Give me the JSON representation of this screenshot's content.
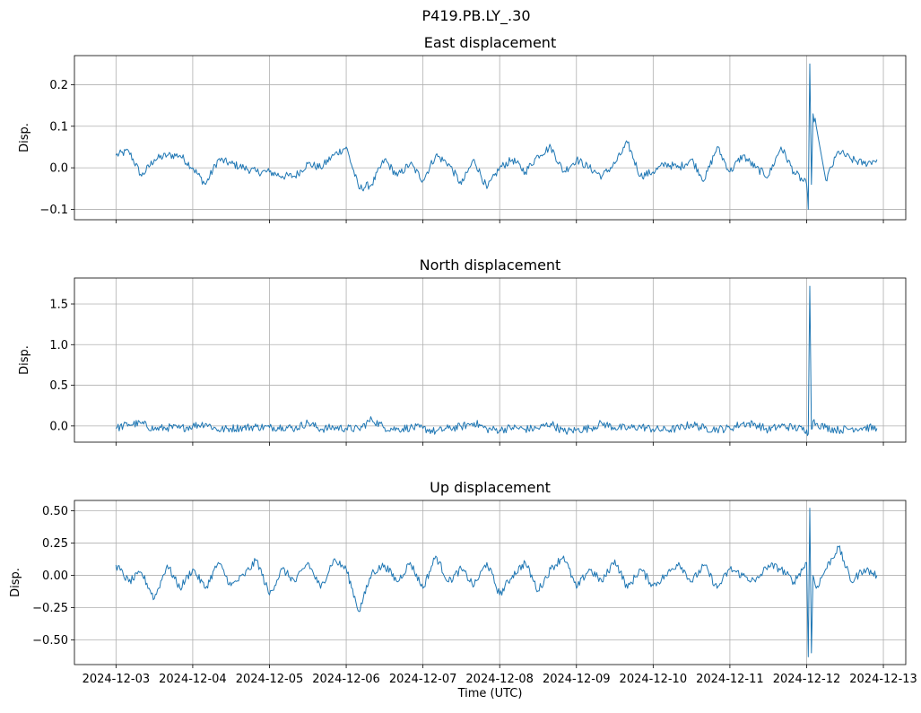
{
  "figure_title": "P419.PB.LY_.30",
  "colors": {
    "series": "#1f77b4",
    "grid": "#b0b0b0"
  },
  "chart_data": [
    {
      "type": "line",
      "title": "East displacement",
      "xlabel": "",
      "ylabel": "Disp.",
      "grid": true,
      "xlim": [
        "2024-12-02T11:00",
        "2024-12-13T07:00"
      ],
      "ylim": [
        -0.125,
        0.27
      ],
      "yticks": [
        -0.1,
        0.0,
        0.1,
        0.2
      ],
      "ytick_labels": [
        "−0.1",
        "0.0",
        "0.1",
        "0.2"
      ],
      "xticks": [
        "2024-12-03",
        "2024-12-04",
        "2024-12-05",
        "2024-12-06",
        "2024-12-07",
        "2024-12-08",
        "2024-12-09",
        "2024-12-10",
        "2024-12-11",
        "2024-12-12",
        "2024-12-13"
      ],
      "xtick_labels_visible": false,
      "series": [
        {
          "x": [
            "2024-12-03T00:00",
            "2024-12-03T04:00",
            "2024-12-03T08:00",
            "2024-12-03T12:00",
            "2024-12-03T16:00",
            "2024-12-03T20:00",
            "2024-12-04T00:00",
            "2024-12-04T04:00",
            "2024-12-04T08:00",
            "2024-12-04T12:00",
            "2024-12-04T16:00",
            "2024-12-04T20:00",
            "2024-12-05T00:00",
            "2024-12-05T04:00",
            "2024-12-05T08:00",
            "2024-12-05T12:00",
            "2024-12-05T16:00",
            "2024-12-05T20:00",
            "2024-12-06T00:00",
            "2024-12-06T04:00",
            "2024-12-06T08:00",
            "2024-12-06T12:00",
            "2024-12-06T16:00",
            "2024-12-06T20:00",
            "2024-12-07T00:00",
            "2024-12-07T04:00",
            "2024-12-07T08:00",
            "2024-12-07T12:00",
            "2024-12-07T16:00",
            "2024-12-07T20:00",
            "2024-12-08T00:00",
            "2024-12-08T04:00",
            "2024-12-08T08:00",
            "2024-12-08T12:00",
            "2024-12-08T16:00",
            "2024-12-08T20:00",
            "2024-12-09T00:00",
            "2024-12-09T04:00",
            "2024-12-09T08:00",
            "2024-12-09T12:00",
            "2024-12-09T16:00",
            "2024-12-09T20:00",
            "2024-12-10T00:00",
            "2024-12-10T04:00",
            "2024-12-10T08:00",
            "2024-12-10T12:00",
            "2024-12-10T16:00",
            "2024-12-10T20:00",
            "2024-12-11T00:00",
            "2024-12-11T04:00",
            "2024-12-11T08:00",
            "2024-12-11T12:00",
            "2024-12-11T16:00",
            "2024-12-11T20:00",
            "2024-12-12T00:00",
            "2024-12-12T00:30",
            "2024-12-12T01:00",
            "2024-12-12T01:30",
            "2024-12-12T02:00",
            "2024-12-12T03:00",
            "2024-12-12T06:00",
            "2024-12-12T10:00",
            "2024-12-12T14:00",
            "2024-12-12T18:00",
            "2024-12-12T22:00"
          ],
          "y": [
            0.03,
            0.04,
            -0.02,
            0.02,
            0.03,
            0.03,
            0.0,
            -0.04,
            0.02,
            0.01,
            0.0,
            -0.01,
            -0.01,
            -0.02,
            -0.02,
            0.01,
            0.0,
            0.03,
            0.05,
            -0.05,
            -0.04,
            0.02,
            -0.02,
            0.01,
            -0.03,
            0.03,
            0.01,
            -0.04,
            0.02,
            -0.05,
            0.0,
            0.02,
            -0.01,
            0.03,
            0.05,
            -0.01,
            0.02,
            0.0,
            -0.02,
            0.01,
            0.06,
            -0.02,
            -0.01,
            0.01,
            0.0,
            0.02,
            -0.03,
            0.05,
            -0.01,
            0.03,
            0.0,
            -0.02,
            0.05,
            -0.01,
            -0.04,
            -0.1,
            0.25,
            -0.04,
            0.13,
            0.1,
            -0.03,
            0.04,
            0.02,
            0.01,
            0.02
          ]
        }
      ]
    },
    {
      "type": "line",
      "title": "North displacement",
      "xlabel": "",
      "ylabel": "Disp.",
      "grid": true,
      "xlim": [
        "2024-12-02T11:00",
        "2024-12-13T07:00"
      ],
      "ylim": [
        -0.2,
        1.82
      ],
      "yticks": [
        0.0,
        0.5,
        1.0,
        1.5
      ],
      "ytick_labels": [
        "0.0",
        "0.5",
        "1.0",
        "1.5"
      ],
      "xticks": [
        "2024-12-03",
        "2024-12-04",
        "2024-12-05",
        "2024-12-06",
        "2024-12-07",
        "2024-12-08",
        "2024-12-09",
        "2024-12-10",
        "2024-12-11",
        "2024-12-12",
        "2024-12-13"
      ],
      "xtick_labels_visible": false,
      "series": [
        {
          "x": [
            "2024-12-03T00:00",
            "2024-12-03T04:00",
            "2024-12-03T08:00",
            "2024-12-03T12:00",
            "2024-12-03T16:00",
            "2024-12-03T20:00",
            "2024-12-04T00:00",
            "2024-12-04T04:00",
            "2024-12-04T08:00",
            "2024-12-04T12:00",
            "2024-12-04T16:00",
            "2024-12-04T20:00",
            "2024-12-05T00:00",
            "2024-12-05T04:00",
            "2024-12-05T08:00",
            "2024-12-05T12:00",
            "2024-12-05T16:00",
            "2024-12-05T20:00",
            "2024-12-06T00:00",
            "2024-12-06T04:00",
            "2024-12-06T08:00",
            "2024-12-06T12:00",
            "2024-12-06T16:00",
            "2024-12-06T20:00",
            "2024-12-07T00:00",
            "2024-12-07T04:00",
            "2024-12-07T08:00",
            "2024-12-07T12:00",
            "2024-12-07T16:00",
            "2024-12-07T20:00",
            "2024-12-08T00:00",
            "2024-12-08T04:00",
            "2024-12-08T08:00",
            "2024-12-08T12:00",
            "2024-12-08T16:00",
            "2024-12-08T20:00",
            "2024-12-09T00:00",
            "2024-12-09T04:00",
            "2024-12-09T08:00",
            "2024-12-09T12:00",
            "2024-12-09T16:00",
            "2024-12-09T20:00",
            "2024-12-10T00:00",
            "2024-12-10T04:00",
            "2024-12-10T08:00",
            "2024-12-10T12:00",
            "2024-12-10T16:00",
            "2024-12-10T20:00",
            "2024-12-11T00:00",
            "2024-12-11T04:00",
            "2024-12-11T08:00",
            "2024-12-11T12:00",
            "2024-12-11T16:00",
            "2024-12-11T20:00",
            "2024-12-12T00:00",
            "2024-12-12T00:30",
            "2024-12-12T01:00",
            "2024-12-12T01:30",
            "2024-12-12T02:00",
            "2024-12-12T03:00",
            "2024-12-12T06:00",
            "2024-12-12T10:00",
            "2024-12-12T14:00",
            "2024-12-12T18:00",
            "2024-12-12T22:00"
          ],
          "y": [
            -0.03,
            0.02,
            0.03,
            -0.04,
            -0.02,
            -0.03,
            0.0,
            0.03,
            -0.05,
            -0.03,
            -0.02,
            -0.01,
            -0.02,
            -0.01,
            -0.03,
            0.04,
            -0.04,
            -0.02,
            -0.03,
            -0.04,
            0.08,
            -0.02,
            -0.04,
            -0.02,
            -0.03,
            -0.07,
            -0.03,
            -0.01,
            0.04,
            -0.04,
            -0.05,
            -0.02,
            -0.04,
            -0.03,
            0.03,
            -0.07,
            -0.05,
            -0.03,
            0.03,
            -0.02,
            -0.03,
            -0.01,
            -0.04,
            -0.05,
            -0.03,
            0.02,
            -0.03,
            -0.04,
            -0.03,
            0.03,
            0.02,
            -0.05,
            0.0,
            -0.02,
            -0.05,
            -0.1,
            1.72,
            -0.04,
            0.06,
            0.03,
            -0.02,
            -0.05,
            -0.03,
            -0.02,
            -0.03
          ]
        }
      ]
    },
    {
      "type": "line",
      "title": "Up displacement",
      "xlabel": "Time (UTC)",
      "ylabel": "Disp.",
      "grid": true,
      "xlim": [
        "2024-12-02T11:00",
        "2024-12-13T07:00"
      ],
      "ylim": [
        -0.69,
        0.58
      ],
      "yticks": [
        -0.5,
        -0.25,
        0.0,
        0.25,
        0.5
      ],
      "ytick_labels": [
        "−0.50",
        "−0.25",
        "0.00",
        "0.25",
        "0.50"
      ],
      "xticks": [
        "2024-12-03",
        "2024-12-04",
        "2024-12-05",
        "2024-12-06",
        "2024-12-07",
        "2024-12-08",
        "2024-12-09",
        "2024-12-10",
        "2024-12-11",
        "2024-12-12",
        "2024-12-13"
      ],
      "xtick_labels_visible": true,
      "series": [
        {
          "x": [
            "2024-12-03T00:00",
            "2024-12-03T04:00",
            "2024-12-03T08:00",
            "2024-12-03T12:00",
            "2024-12-03T16:00",
            "2024-12-03T20:00",
            "2024-12-04T00:00",
            "2024-12-04T04:00",
            "2024-12-04T08:00",
            "2024-12-04T12:00",
            "2024-12-04T16:00",
            "2024-12-04T20:00",
            "2024-12-05T00:00",
            "2024-12-05T04:00",
            "2024-12-05T08:00",
            "2024-12-05T12:00",
            "2024-12-05T16:00",
            "2024-12-05T20:00",
            "2024-12-06T00:00",
            "2024-12-06T04:00",
            "2024-12-06T08:00",
            "2024-12-06T12:00",
            "2024-12-06T16:00",
            "2024-12-06T20:00",
            "2024-12-07T00:00",
            "2024-12-07T04:00",
            "2024-12-07T08:00",
            "2024-12-07T12:00",
            "2024-12-07T16:00",
            "2024-12-07T20:00",
            "2024-12-08T00:00",
            "2024-12-08T04:00",
            "2024-12-08T08:00",
            "2024-12-08T12:00",
            "2024-12-08T16:00",
            "2024-12-08T20:00",
            "2024-12-09T00:00",
            "2024-12-09T04:00",
            "2024-12-09T08:00",
            "2024-12-09T12:00",
            "2024-12-09T16:00",
            "2024-12-09T20:00",
            "2024-12-10T00:00",
            "2024-12-10T04:00",
            "2024-12-10T08:00",
            "2024-12-10T12:00",
            "2024-12-10T16:00",
            "2024-12-10T20:00",
            "2024-12-11T00:00",
            "2024-12-11T04:00",
            "2024-12-11T08:00",
            "2024-12-11T12:00",
            "2024-12-11T16:00",
            "2024-12-11T20:00",
            "2024-12-12T00:00",
            "2024-12-12T00:30",
            "2024-12-12T01:00",
            "2024-12-12T01:30",
            "2024-12-12T02:00",
            "2024-12-12T03:00",
            "2024-12-12T06:00",
            "2024-12-12T10:00",
            "2024-12-12T14:00",
            "2024-12-12T18:00",
            "2024-12-12T22:00"
          ],
          "y": [
            0.08,
            -0.05,
            0.02,
            -0.18,
            0.08,
            -0.1,
            0.05,
            -0.1,
            0.1,
            -0.08,
            0.0,
            0.12,
            -0.15,
            0.05,
            -0.05,
            0.1,
            -0.1,
            0.12,
            0.05,
            -0.28,
            0.02,
            0.08,
            -0.05,
            0.1,
            -0.1,
            0.15,
            -0.05,
            0.05,
            -0.08,
            0.1,
            -0.15,
            0.0,
            0.1,
            -0.12,
            0.05,
            0.15,
            -0.1,
            0.05,
            -0.05,
            0.12,
            -0.1,
            0.05,
            -0.08,
            0.0,
            0.1,
            -0.05,
            0.08,
            -0.1,
            0.05,
            0.0,
            -0.05,
            0.08,
            0.05,
            -0.05,
            0.1,
            -0.63,
            0.52,
            -0.6,
            0.0,
            -0.1,
            0.05,
            0.22,
            -0.05,
            0.05,
            0.0
          ]
        }
      ]
    }
  ]
}
